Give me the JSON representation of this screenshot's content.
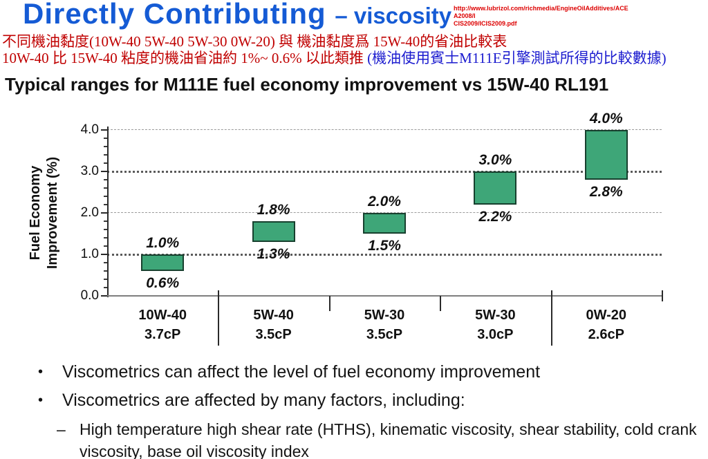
{
  "header": {
    "title_main": "Directly Contributing",
    "title_sub": "– viscosity",
    "url_line1": "http://www.lubrizol.com/richmedia/EngineOilAdditives/ACEA2008/I",
    "url_line2": "CIS2009/ICIS2009.pdf"
  },
  "subtitle": {
    "line1": "不同機油黏度(10W-40 5W-40 5W-30 0W-20) 與 機油黏度爲 15W-40的省油比較表",
    "line2_red": "10W-40 比 15W-40 粘度的機油省油約 1%~ 0.6% 以此類推 ",
    "line2_blue": "(機油使用賓士M111E引擎測試所得的比較數據)"
  },
  "chart_data": {
    "type": "bar",
    "variant": "floating-range-bars",
    "title": "Typical ranges for M111E fuel economy improvement vs 15W-40 RL191",
    "ylabel_line1": "Fuel Economy",
    "ylabel_line2": "Improvement (%)",
    "xlabel": "",
    "ylim": [
      0.0,
      4.0
    ],
    "ytick_step": 1.0,
    "yminor_step": 0.2,
    "ytick_labels": [
      "0.0",
      "1.0",
      "2.0",
      "3.0",
      "4.0"
    ],
    "grid": "horizontal dashed gridlines at each major y tick",
    "legend": "none",
    "categories": [
      "10W-40",
      "5W-40",
      "5W-30",
      "5W-30",
      "0W-20"
    ],
    "bars": [
      {
        "grade": "10W-40",
        "viscosity": "3.7cP",
        "low": 0.6,
        "high": 1.0,
        "low_label": "0.6%",
        "high_label": "1.0%"
      },
      {
        "grade": "5W-40",
        "viscosity": "3.5cP",
        "low": 1.3,
        "high": 1.8,
        "low_label": "1.3%",
        "high_label": "1.8%"
      },
      {
        "grade": "5W-30",
        "viscosity": "3.5cP",
        "low": 1.5,
        "high": 2.0,
        "low_label": "1.5%",
        "high_label": "2.0%"
      },
      {
        "grade": "5W-30",
        "viscosity": "3.0cP",
        "low": 2.2,
        "high": 3.0,
        "low_label": "2.2%",
        "high_label": "3.0%"
      },
      {
        "grade": "0W-20",
        "viscosity": "2.6cP",
        "low": 2.8,
        "high": 4.0,
        "low_label": "2.8%",
        "high_label": "4.0%"
      }
    ],
    "x_group_separators": [
      "long",
      "short",
      "short",
      "long",
      "end"
    ]
  },
  "bullets": {
    "bullet_glyph": "•",
    "dash_glyph": "–",
    "item1": "Viscometrics can affect the level of fuel economy improvement",
    "item2": "Viscometrics are affected by many factors, including:",
    "sub1": "High temperature high shear rate (HTHS), kinematic viscosity, shear stability, cold crank viscosity, base oil viscosity index"
  },
  "colors": {
    "title_blue": "#155bd5",
    "red_text": "#c00000",
    "url_red": "#dd0000",
    "cjk_blue": "#1b1bcf",
    "bar_green": "#3ea678",
    "bar_border": "#17402e"
  }
}
